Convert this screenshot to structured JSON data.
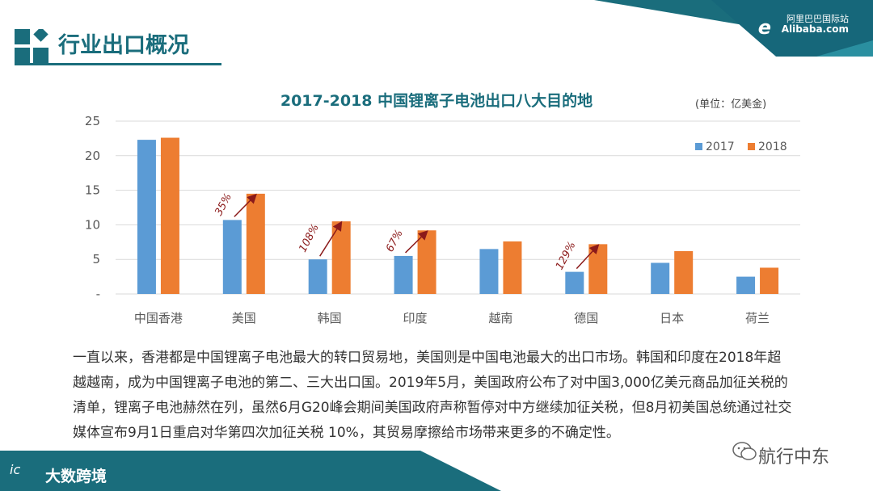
{
  "header": {
    "title": "行业出口概况",
    "brand_cn": "阿里巴巴国际站",
    "brand_en": "Alibaba.com",
    "brand_mark": "e"
  },
  "colors": {
    "teal": "#1a6d7c",
    "bar_2017": "#5b9bd5",
    "bar_2018": "#ed7d31",
    "arrow": "#8b1a1a"
  },
  "chart_data": {
    "type": "bar",
    "title": "2017-2018 中国锂离子电池出口八大目的地",
    "unit": "(单位：亿美金)",
    "categories": [
      "中国香港",
      "美国",
      "韩国",
      "印度",
      "越南",
      "德国",
      "日本",
      "荷兰"
    ],
    "series": [
      {
        "name": "2017",
        "values": [
          22.3,
          10.7,
          5.0,
          5.5,
          6.5,
          3.2,
          4.5,
          2.5
        ]
      },
      {
        "name": "2018",
        "values": [
          22.6,
          14.5,
          10.5,
          9.2,
          7.6,
          7.2,
          6.2,
          3.8
        ]
      }
    ],
    "ylim": [
      0,
      25
    ],
    "yticks": [
      "-",
      "5",
      "10",
      "15",
      "20",
      "25"
    ],
    "grid": true,
    "legend_position": "top-right",
    "annotations": [
      {
        "category": "美国",
        "text": "35%"
      },
      {
        "category": "韩国",
        "text": "108%"
      },
      {
        "category": "印度",
        "text": "67%"
      },
      {
        "category": "德国",
        "text": "129%"
      }
    ]
  },
  "body_text": "一直以来，香港都是中国锂离子电池最大的转口贸易地，美国则是中国电池最大的出口市场。韩国和印度在2018年超越越南，成为中国锂离子电池的第二、三大出口国。2019年5月，美国政府公布了对中国3,000亿美元商品加征关税的清单，锂离子电池赫然在列，虽然6月G20峰会期间美国政府声称暂停对中方继续加征关税，但8月初美国总统通过社交媒体宣布9月1日重启对华第四次加征关税 10%，其贸易摩擦给市场带来更多的不确定性。",
  "footer": {
    "left_text": "大数跨境",
    "left_mark": "ic",
    "right_text": "航行中东"
  }
}
